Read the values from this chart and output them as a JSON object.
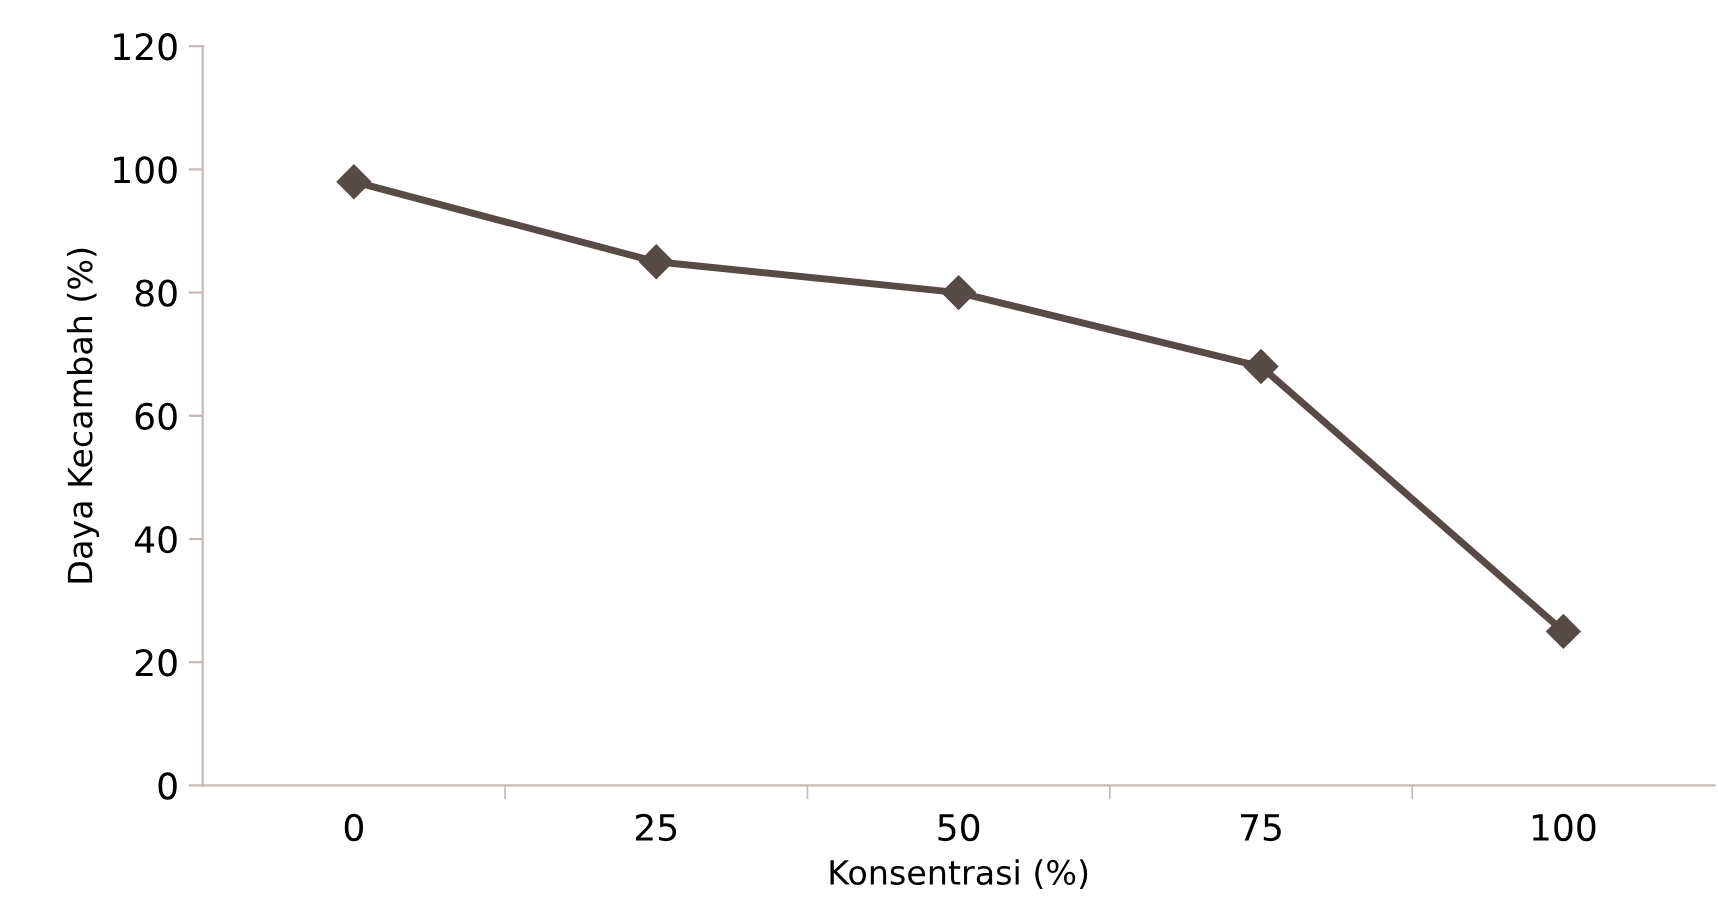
{
  "chart_data": {
    "type": "line",
    "xlabel": "Konsentrasi (%)",
    "ylabel": "Daya Kecambah (%)",
    "categories": [
      "0",
      "25",
      "50",
      "75",
      "100"
    ],
    "series": [
      {
        "color": "#574a47",
        "values": [
          98,
          85,
          80,
          68,
          25
        ]
      }
    ],
    "ylim": [
      0,
      120
    ],
    "yticks": [
      0,
      20,
      40,
      60,
      80,
      100,
      120
    ],
    "marker": "diamond",
    "line_style": "solid",
    "grid": false
  }
}
